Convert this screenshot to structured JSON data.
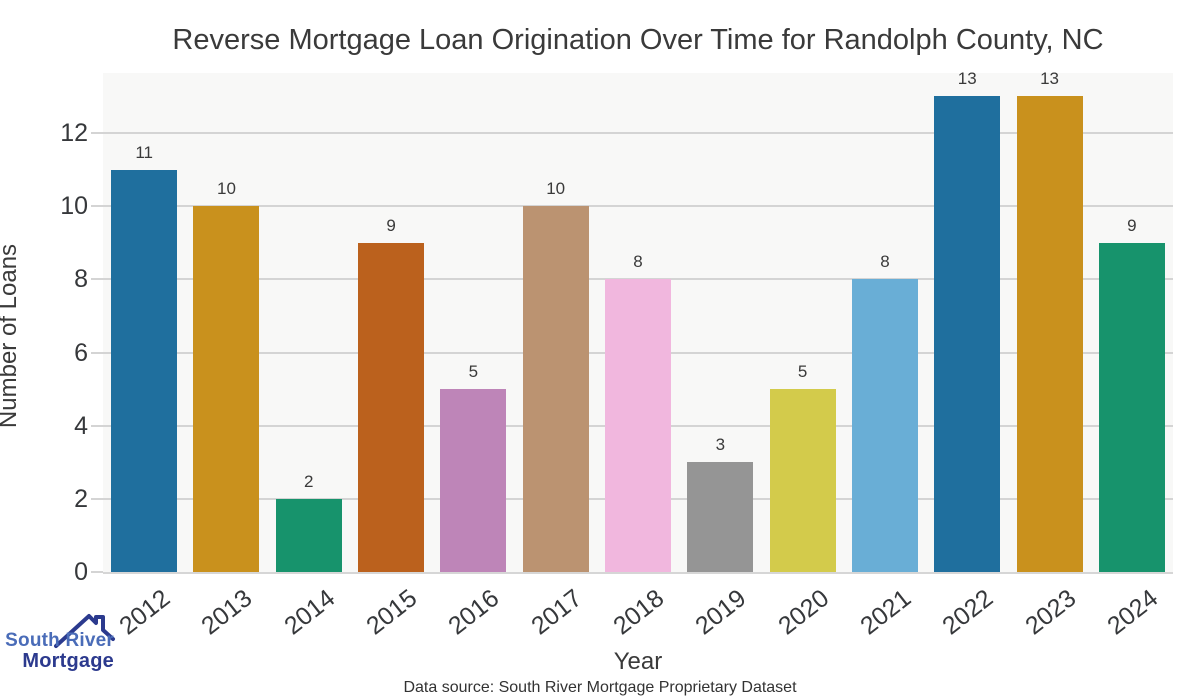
{
  "title": "Reverse Mortgage Loan Origination Over Time for Randolph County, NC",
  "chart_data": {
    "type": "bar",
    "categories": [
      "2012",
      "2013",
      "2014",
      "2015",
      "2016",
      "2017",
      "2018",
      "2019",
      "2020",
      "2021",
      "2022",
      "2023",
      "2024"
    ],
    "values": [
      11,
      10,
      2,
      9,
      5,
      10,
      8,
      3,
      5,
      8,
      13,
      13,
      9
    ],
    "bar_colors": [
      "#1f6f9e",
      "#c9911d",
      "#17936c",
      "#bb611d",
      "#be85b8",
      "#bb9371",
      "#f1b7de",
      "#959595",
      "#d3cb4b",
      "#69aed6",
      "#1f6f9e",
      "#c9911d",
      "#17936c"
    ],
    "value_labels": [
      "11",
      "10",
      "2",
      "9",
      "5",
      "10",
      "8",
      "3",
      "5",
      "8",
      "13",
      "13",
      "9"
    ],
    "title": "Reverse Mortgage Loan Origination Over Time for Randolph County, NC",
    "xlabel": "Year",
    "ylabel": "Number of Loans",
    "ylim": [
      0,
      13.64
    ],
    "yticks": [
      0,
      2,
      4,
      6,
      8,
      10,
      12
    ],
    "grid": "horizontal",
    "legend": "none",
    "plot_bg": "#f8f8f7",
    "grid_color": "#d4d4d4"
  },
  "footer": {
    "data_source": "Data source: South River Mortgage Proprietary Dataset"
  },
  "logo": {
    "line1": "South River",
    "line2": "Mortgage",
    "line1_color": "#4a6cb8",
    "line2_color": "#2c3a8e",
    "roof_color": "#2b3a8e"
  }
}
